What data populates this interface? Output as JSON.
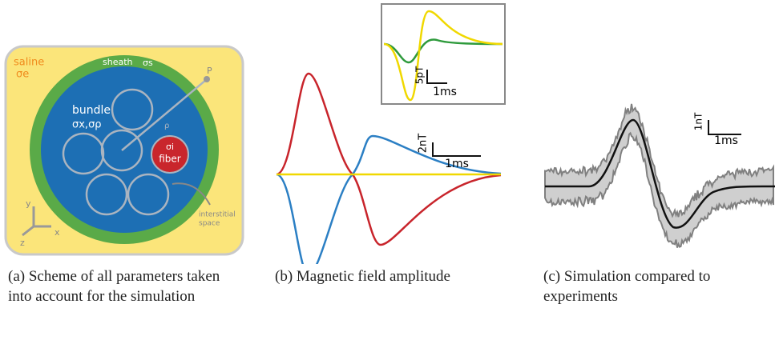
{
  "panel_a": {
    "labels": {
      "saline": "saline",
      "sigma_e": "σe",
      "sheath": "sheath",
      "sigma_s": "σs",
      "bundle": "bundle",
      "sigma_bundle": "σx,σρ",
      "sigma_i": "σi",
      "fiber": "fiber",
      "p": "P",
      "rho": "ρ",
      "interstitial_1": "interstitial",
      "interstitial_2": "space",
      "axis_y": "y",
      "axis_z": "z",
      "axis_x": "x"
    },
    "caption": "(a) Scheme of all parameters taken into account for the simulation"
  },
  "panel_b": {
    "inset_scale": {
      "amplitude": "5pT",
      "time": "1ms"
    },
    "main_scale": {
      "amplitude": "2nT",
      "time": "1ms"
    },
    "caption": "(b) Magnetic field amplitude"
  },
  "panel_c": {
    "scale": {
      "amplitude": "1nT",
      "time": "1ms"
    },
    "caption": "(c) Simulation compared to experiments"
  }
}
